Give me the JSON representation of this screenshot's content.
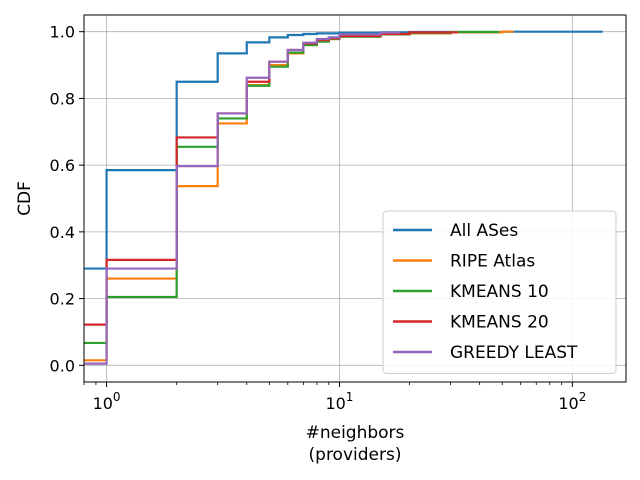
{
  "chart_data": {
    "type": "line",
    "xscale": "log",
    "xlim": [
      0.8,
      170
    ],
    "ylim": [
      -0.05,
      1.05
    ],
    "xlabel": [
      "#neighbors",
      "(providers)"
    ],
    "ylabel": "CDF",
    "grid": true,
    "legend_position": "lower-right",
    "x_ticks": [
      {
        "value": 1,
        "base": "10",
        "exp": "0"
      },
      {
        "value": 10,
        "base": "10",
        "exp": "1"
      },
      {
        "value": 100,
        "base": "10",
        "exp": "2"
      }
    ],
    "y_ticks": [
      {
        "value": 0.0,
        "label": "0.0"
      },
      {
        "value": 0.2,
        "label": "0.2"
      },
      {
        "value": 0.4,
        "label": "0.4"
      },
      {
        "value": 0.6,
        "label": "0.6"
      },
      {
        "value": 0.8,
        "label": "0.8"
      },
      {
        "value": 1.0,
        "label": "1.0"
      }
    ],
    "series": [
      {
        "name": "All ASes",
        "color": "#1f77b4",
        "x": [
          0.8,
          1,
          2,
          3,
          4,
          5,
          6,
          7,
          8,
          10,
          15,
          20,
          30,
          50,
          135
        ],
        "y": [
          0.29,
          0.585,
          0.85,
          0.935,
          0.968,
          0.983,
          0.99,
          0.993,
          0.995,
          0.997,
          0.998,
          0.999,
          0.999,
          1.0,
          1.0
        ]
      },
      {
        "name": "RIPE Atlas",
        "color": "#ff7f0e",
        "x": [
          0.8,
          1,
          2,
          3,
          4,
          5,
          6,
          7,
          8,
          9,
          10,
          15,
          20,
          30,
          50,
          56
        ],
        "y": [
          0.015,
          0.26,
          0.537,
          0.725,
          0.84,
          0.9,
          0.935,
          0.96,
          0.972,
          0.978,
          0.985,
          0.992,
          0.995,
          0.998,
          1.0,
          1.0
        ]
      },
      {
        "name": "KMEANS 10",
        "color": "#2ca02c",
        "x": [
          0.8,
          1,
          2,
          3,
          4,
          5,
          6,
          7,
          8,
          9,
          10,
          15,
          20,
          30,
          48
        ],
        "y": [
          0.067,
          0.205,
          0.655,
          0.74,
          0.838,
          0.895,
          0.937,
          0.96,
          0.97,
          0.978,
          0.985,
          0.992,
          0.996,
          0.999,
          1.0
        ]
      },
      {
        "name": "KMEANS 20",
        "color": "#d62728",
        "x": [
          0.8,
          1,
          2,
          3,
          4,
          5,
          6,
          7,
          8,
          9,
          10,
          15,
          20,
          32
        ],
        "y": [
          0.122,
          0.316,
          0.683,
          0.755,
          0.85,
          0.91,
          0.945,
          0.965,
          0.975,
          0.98,
          0.987,
          0.993,
          0.998,
          1.0
        ]
      },
      {
        "name": "GREEDY LEAST",
        "color": "#9467bd",
        "x": [
          0.8,
          1,
          2,
          3,
          4,
          5,
          6,
          7,
          8,
          9,
          10,
          15,
          18
        ],
        "y": [
          0.005,
          0.29,
          0.597,
          0.755,
          0.862,
          0.91,
          0.945,
          0.967,
          0.978,
          0.983,
          0.992,
          0.997,
          1.0
        ]
      }
    ]
  }
}
